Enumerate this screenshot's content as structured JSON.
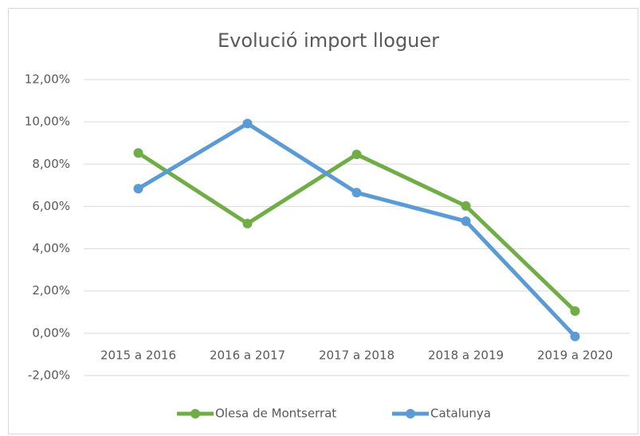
{
  "chart_data": {
    "type": "line",
    "title": "Evolució import lloguer",
    "categories": [
      "2015 a 2016",
      "2016 a 2017",
      "2017 a 2018",
      "2018 a 2019",
      "2019 a 2020"
    ],
    "series": [
      {
        "name": "Olesa de Montserrat",
        "color": "#70ad47",
        "values": [
          8.53,
          5.19,
          8.46,
          6.02,
          1.05
        ]
      },
      {
        "name": "Catalunya",
        "color": "#5b9bd5",
        "values": [
          6.84,
          9.92,
          6.65,
          5.3,
          -0.15
        ]
      }
    ],
    "ylim": [
      -2,
      12
    ],
    "yticks": [
      {
        "value": -2,
        "label": "-2,00%"
      },
      {
        "value": 0,
        "label": "0,00%"
      },
      {
        "value": 2,
        "label": "2,00%"
      },
      {
        "value": 4,
        "label": "4,00%"
      },
      {
        "value": 6,
        "label": "6,00%"
      },
      {
        "value": 8,
        "label": "8,00%"
      },
      {
        "value": 10,
        "label": "10,00%"
      },
      {
        "value": 12,
        "label": "12,00%"
      }
    ],
    "grid": true,
    "legend": "bottom"
  }
}
